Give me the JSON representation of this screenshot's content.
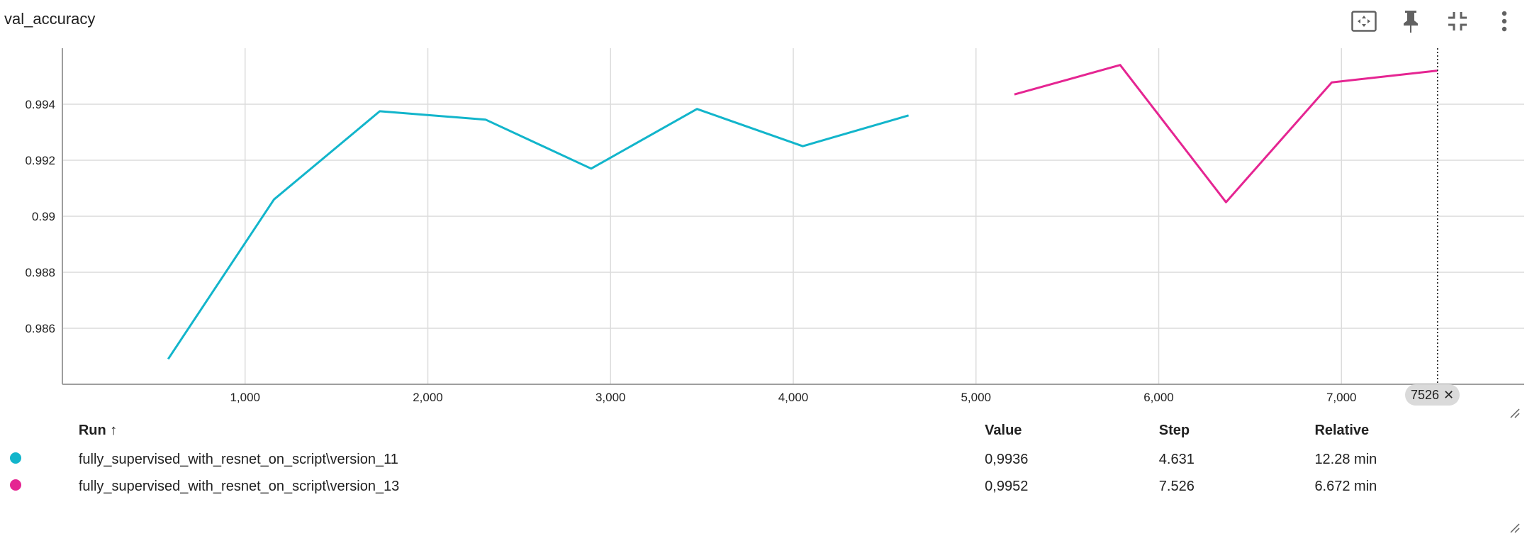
{
  "card": {
    "title": "val_accuracy"
  },
  "toolbar": {
    "buttons": [
      {
        "name": "fit-domain-icon"
      },
      {
        "name": "pin-icon"
      },
      {
        "name": "collapse-icon"
      },
      {
        "name": "more-vert-icon"
      }
    ]
  },
  "chart_data": {
    "type": "line",
    "xlabel": "",
    "ylabel": "",
    "xlim": [
      0,
      8000
    ],
    "ylim": [
      0.984,
      0.996
    ],
    "x_ticks": [
      1000,
      2000,
      3000,
      4000,
      5000,
      6000,
      7000
    ],
    "x_tick_labels": [
      "1,000",
      "2,000",
      "3,000",
      "4,000",
      "5,000",
      "6,000",
      "7,000"
    ],
    "y_ticks": [
      0.986,
      0.988,
      0.99,
      0.992,
      0.994
    ],
    "y_tick_labels": [
      "0.986",
      "0.988",
      "0.99",
      "0.992",
      "0.994"
    ],
    "grid": true,
    "series": [
      {
        "name": "fully_supervised_with_resnet_on_script\\version_11",
        "color": "#12b5cb",
        "x": [
          579,
          1158,
          1737,
          2316,
          2894,
          3473,
          4052,
          4631
        ],
        "y": [
          0.9849,
          0.9906,
          0.99375,
          0.99345,
          0.9917,
          0.99383,
          0.9925,
          0.9936
        ]
      },
      {
        "name": "fully_supervised_with_resnet_on_script\\version_13",
        "color": "#e52592",
        "x": [
          5210,
          5789,
          6368,
          6947,
          7526
        ],
        "y": [
          0.99435,
          0.9954,
          0.9905,
          0.99478,
          0.9952
        ]
      }
    ],
    "cursor_step": 7526,
    "cursor_label": "7526"
  },
  "table": {
    "headers": {
      "run": "Run ↑",
      "value": "Value",
      "step": "Step",
      "relative": "Relative"
    },
    "rows": [
      {
        "color": "#12b5cb",
        "run": "fully_supervised_with_resnet_on_script\\version_11",
        "value": "0,9936",
        "step": "4.631",
        "relative": "12.28 min"
      },
      {
        "color": "#e52592",
        "run": "fully_supervised_with_resnet_on_script\\version_13",
        "value": "0,9952",
        "step": "7.526",
        "relative": "6.672 min"
      }
    ]
  }
}
